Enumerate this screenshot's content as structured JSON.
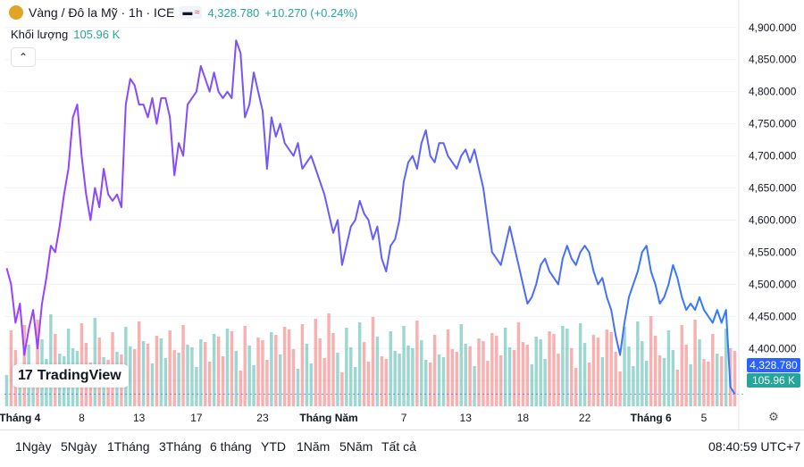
{
  "header": {
    "title": "Vàng / Đô la Mỹ · 1h · ICE",
    "last_price": "4,328.780",
    "change": "+10.270 (+0.24%)",
    "pill_symbol": "≈"
  },
  "volume_legend": {
    "label": "Khối lượng",
    "value": "105.96 K"
  },
  "watermark": "TradingView",
  "price_tag": "4,328.780",
  "volume_tag": "105.96 K",
  "range_buttons": [
    "1Ngày",
    "5Ngày",
    "1Tháng",
    "3Tháng",
    "6 tháng",
    "YTD",
    "1Năm",
    "5Năm",
    "Tất cả"
  ],
  "clock": "08:40:59 UTC+7",
  "colors": {
    "line_start": "#9c3fff",
    "line_end": "#2f7cf6",
    "vol_up": "#26a69a",
    "vol_down": "#ef5350",
    "grid": "#f0f3fa"
  },
  "chart_data": {
    "type": "line",
    "y_ticks": [
      "4,900.000",
      "4,850.000",
      "4,800.000",
      "4,750.000",
      "4,700.000",
      "4,650.000",
      "4,600.000",
      "4,550.000",
      "4,500.000",
      "4,450.000",
      "4,400.000",
      "4,350.000"
    ],
    "ylim": [
      4310,
      4915
    ],
    "x_ticks": [
      "Tháng 4",
      "8",
      "13",
      "17",
      "23",
      "Tháng Năm",
      "7",
      "13",
      "18",
      "22",
      "Tháng 6",
      "5"
    ],
    "x_tick_index": [
      3,
      17,
      30,
      43,
      58,
      73,
      90,
      104,
      117,
      131,
      146,
      158
    ],
    "n_bars": 166,
    "series": [
      {
        "values": [
          4525,
          4500,
          4440,
          4470,
          4390,
          4430,
          4460,
          4400,
          4470,
          4510,
          4560,
          4550,
          4590,
          4640,
          4680,
          4760,
          4780,
          4700,
          4640,
          4600,
          4650,
          4620,
          4680,
          4640,
          4630,
          4640,
          4620,
          4780,
          4820,
          4810,
          4780,
          4780,
          4760,
          4790,
          4750,
          4790,
          4790,
          4760,
          4670,
          4720,
          4700,
          4780,
          4790,
          4800,
          4840,
          4820,
          4800,
          4830,
          4800,
          4790,
          4800,
          4790,
          4880,
          4860,
          4760,
          4780,
          4830,
          4800,
          4770,
          4680,
          4760,
          4730,
          4750,
          4720,
          4710,
          4700,
          4720,
          4680,
          4690,
          4700,
          4680,
          4660,
          4640,
          4610,
          4580,
          4600,
          4530,
          4560,
          4590,
          4600,
          4630,
          4610,
          4600,
          4570,
          4590,
          4540,
          4520,
          4560,
          4570,
          4600,
          4660,
          4690,
          4700,
          4680,
          4720,
          4740,
          4700,
          4690,
          4720,
          4720,
          4700,
          4690,
          4680,
          4700,
          4710,
          4690,
          4710,
          4680,
          4650,
          4600,
          4550,
          4540,
          4530,
          4560,
          4590,
          4560,
          4530,
          4500,
          4470,
          4480,
          4500,
          4530,
          4540,
          4520,
          4510,
          4500,
          4540,
          4560,
          4540,
          4530,
          4550,
          4560,
          4550,
          4520,
          4500,
          4510,
          4480,
          4460,
          4420,
          4390,
          4440,
          4480,
          4500,
          4520,
          4550,
          4560,
          4520,
          4500,
          4470,
          4480,
          4500,
          4530,
          4510,
          4480,
          4460,
          4470,
          4460,
          4480,
          4460,
          4450,
          4440,
          4460,
          4440,
          4460,
          4340,
          4329
        ]
      }
    ]
  }
}
